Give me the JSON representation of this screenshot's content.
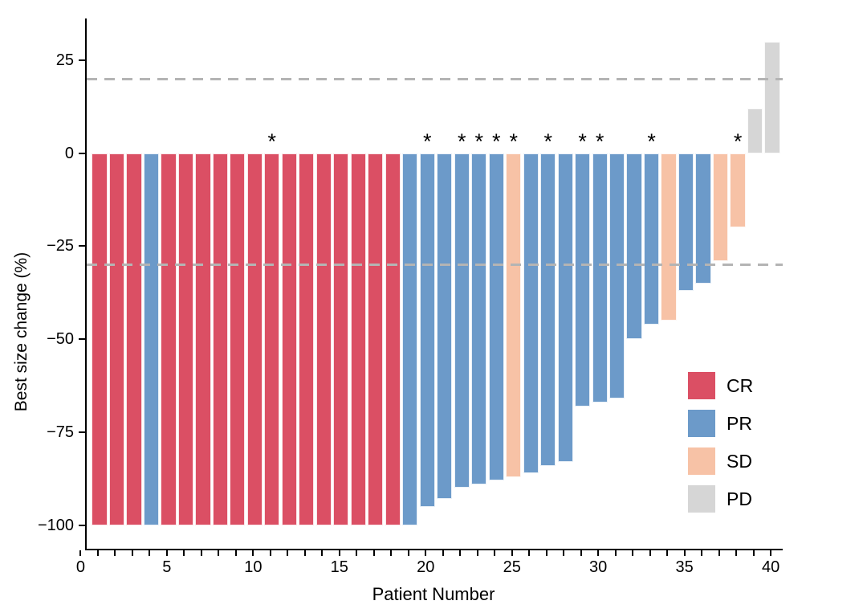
{
  "figure": {
    "background": "#FFFFFF",
    "axis_color": "#000000",
    "dashed_line_color": "#B4B4B4",
    "asterisk_symbol": "*"
  },
  "chart_data": {
    "type": "bar",
    "title": "",
    "xlabel": "Patient Number",
    "ylabel": "Best size change (%)",
    "grid": false,
    "xlim": [
      0.26,
      40.6
    ],
    "ylim": [
      -106.3,
      36.2
    ],
    "reference_lines": [
      20,
      -30
    ],
    "yticks": [
      {
        "value": 25,
        "label": "25"
      },
      {
        "value": 0,
        "label": "0"
      },
      {
        "value": -25,
        "label": "−25"
      },
      {
        "value": -50,
        "label": "−50"
      },
      {
        "value": -75,
        "label": "−75"
      },
      {
        "value": -100,
        "label": "−100"
      }
    ],
    "xtick_labeled_values": [
      0,
      5,
      10,
      15,
      20,
      25,
      30,
      35,
      40
    ],
    "xtick_minor_step": 1,
    "xtick_max": 40,
    "bar_width_fraction": 0.9,
    "colors": {
      "CR": "#DB4F64",
      "PR": "#6C9AC9",
      "SD": "#F7C2A6",
      "PD": "#D6D6D6"
    },
    "legend": {
      "position": "inside-right",
      "items": [
        {
          "code": "CR",
          "label": "CR"
        },
        {
          "code": "PR",
          "label": "PR"
        },
        {
          "code": "SD",
          "label": "SD"
        },
        {
          "code": "PD",
          "label": "PD"
        }
      ]
    },
    "starred_patients": [
      11,
      20,
      22,
      23,
      24,
      25,
      27,
      29,
      30,
      33,
      38
    ],
    "bars": [
      {
        "patient": 1,
        "value": -100,
        "response": "CR",
        "star": false
      },
      {
        "patient": 2,
        "value": -100,
        "response": "CR",
        "star": false
      },
      {
        "patient": 3,
        "value": -100,
        "response": "CR",
        "star": false
      },
      {
        "patient": 4,
        "value": -100,
        "response": "PR",
        "star": false
      },
      {
        "patient": 5,
        "value": -100,
        "response": "CR",
        "star": false
      },
      {
        "patient": 6,
        "value": -100,
        "response": "CR",
        "star": false
      },
      {
        "patient": 7,
        "value": -100,
        "response": "CR",
        "star": false
      },
      {
        "patient": 8,
        "value": -100,
        "response": "CR",
        "star": false
      },
      {
        "patient": 9,
        "value": -100,
        "response": "CR",
        "star": false
      },
      {
        "patient": 10,
        "value": -100,
        "response": "CR",
        "star": false
      },
      {
        "patient": 11,
        "value": -100,
        "response": "CR",
        "star": true
      },
      {
        "patient": 12,
        "value": -100,
        "response": "CR",
        "star": false
      },
      {
        "patient": 13,
        "value": -100,
        "response": "CR",
        "star": false
      },
      {
        "patient": 14,
        "value": -100,
        "response": "CR",
        "star": false
      },
      {
        "patient": 15,
        "value": -100,
        "response": "CR",
        "star": false
      },
      {
        "patient": 16,
        "value": -100,
        "response": "CR",
        "star": false
      },
      {
        "patient": 17,
        "value": -100,
        "response": "CR",
        "star": false
      },
      {
        "patient": 18,
        "value": -100,
        "response": "CR",
        "star": false
      },
      {
        "patient": 19,
        "value": -100,
        "response": "PR",
        "star": false
      },
      {
        "patient": 20,
        "value": -95,
        "response": "PR",
        "star": true
      },
      {
        "patient": 21,
        "value": -93,
        "response": "PR",
        "star": false
      },
      {
        "patient": 22,
        "value": -90,
        "response": "PR",
        "star": true
      },
      {
        "patient": 23,
        "value": -89,
        "response": "PR",
        "star": true
      },
      {
        "patient": 24,
        "value": -88,
        "response": "PR",
        "star": true
      },
      {
        "patient": 25,
        "value": -87,
        "response": "SD",
        "star": true
      },
      {
        "patient": 26,
        "value": -86,
        "response": "PR",
        "star": false
      },
      {
        "patient": 27,
        "value": -84,
        "response": "PR",
        "star": true
      },
      {
        "patient": 28,
        "value": -83,
        "response": "PR",
        "star": false
      },
      {
        "patient": 29,
        "value": -68,
        "response": "PR",
        "star": true
      },
      {
        "patient": 30,
        "value": -67,
        "response": "PR",
        "star": true
      },
      {
        "patient": 31,
        "value": -66,
        "response": "PR",
        "star": false
      },
      {
        "patient": 32,
        "value": -50,
        "response": "PR",
        "star": false
      },
      {
        "patient": 33,
        "value": -46,
        "response": "PR",
        "star": true
      },
      {
        "patient": 34,
        "value": -45,
        "response": "SD",
        "star": false
      },
      {
        "patient": 35,
        "value": -37,
        "response": "PR",
        "star": false
      },
      {
        "patient": 36,
        "value": -35,
        "response": "PR",
        "star": false
      },
      {
        "patient": 37,
        "value": -29,
        "response": "SD",
        "star": false
      },
      {
        "patient": 38,
        "value": -20,
        "response": "SD",
        "star": true
      },
      {
        "patient": 39,
        "value": 12,
        "response": "PD",
        "star": false
      },
      {
        "patient": 40,
        "value": 30,
        "response": "PD",
        "star": false
      }
    ]
  }
}
